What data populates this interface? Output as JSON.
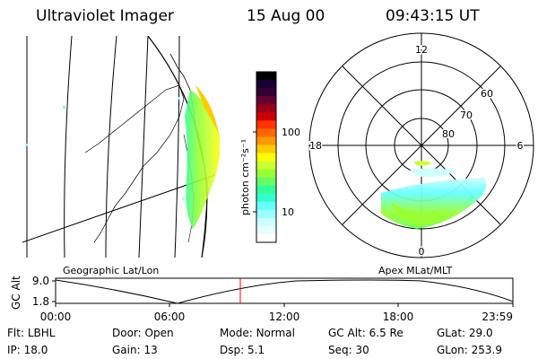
{
  "header": {
    "instrument": "Ultraviolet Imager",
    "date": "15 Aug 00",
    "time": "09:43:15 UT"
  },
  "colorbar": {
    "unit_label": "photon cm⁻²s⁻¹",
    "ticks": [
      "100",
      "10"
    ],
    "colors": [
      "#000000",
      "#1a0033",
      "#330033",
      "#660033",
      "#99001a",
      "#cc0000",
      "#ff3300",
      "#ff6600",
      "#ff9900",
      "#ffcc00",
      "#ffff00",
      "#ccff33",
      "#99ff33",
      "#66ff66",
      "#33ff99",
      "#33ffcc",
      "#66ffff",
      "#99ffff",
      "#ccffff",
      "#e6ffff",
      "#ffffff"
    ]
  },
  "polar_plot": {
    "mlt_labels": {
      "top": "12",
      "left": "18",
      "right": "6",
      "bottom": "0"
    },
    "lat_labels": [
      "60",
      "70",
      "80"
    ]
  },
  "map_titles": {
    "left": "Geographic Lat/Lon",
    "right": "Apex MLat/MLT"
  },
  "altitude_plot": {
    "ylabel": "GC Alt",
    "yticks": [
      "9.0",
      "1.8"
    ],
    "xticks": [
      "00:00",
      "06:00",
      "12:00",
      "18:00",
      "23:59"
    ],
    "marker_time": "09:43"
  },
  "info": {
    "row1": [
      {
        "label": "Flt:",
        "value": "LBHL"
      },
      {
        "label": "Door:",
        "value": "Open"
      },
      {
        "label": "Mode:",
        "value": "Normal"
      },
      {
        "label": "GC Alt:",
        "value": "6.5 Re"
      },
      {
        "label": "GLat:",
        "value": "29.0"
      }
    ],
    "row2": [
      {
        "label": "IP:",
        "value": "18.0"
      },
      {
        "label": "Gain:",
        "value": "13"
      },
      {
        "label": "Dsp:",
        "value": "5.1"
      },
      {
        "label": "Seq:",
        "value": "30"
      },
      {
        "label": "GLon:",
        "value": "253.9"
      }
    ]
  }
}
